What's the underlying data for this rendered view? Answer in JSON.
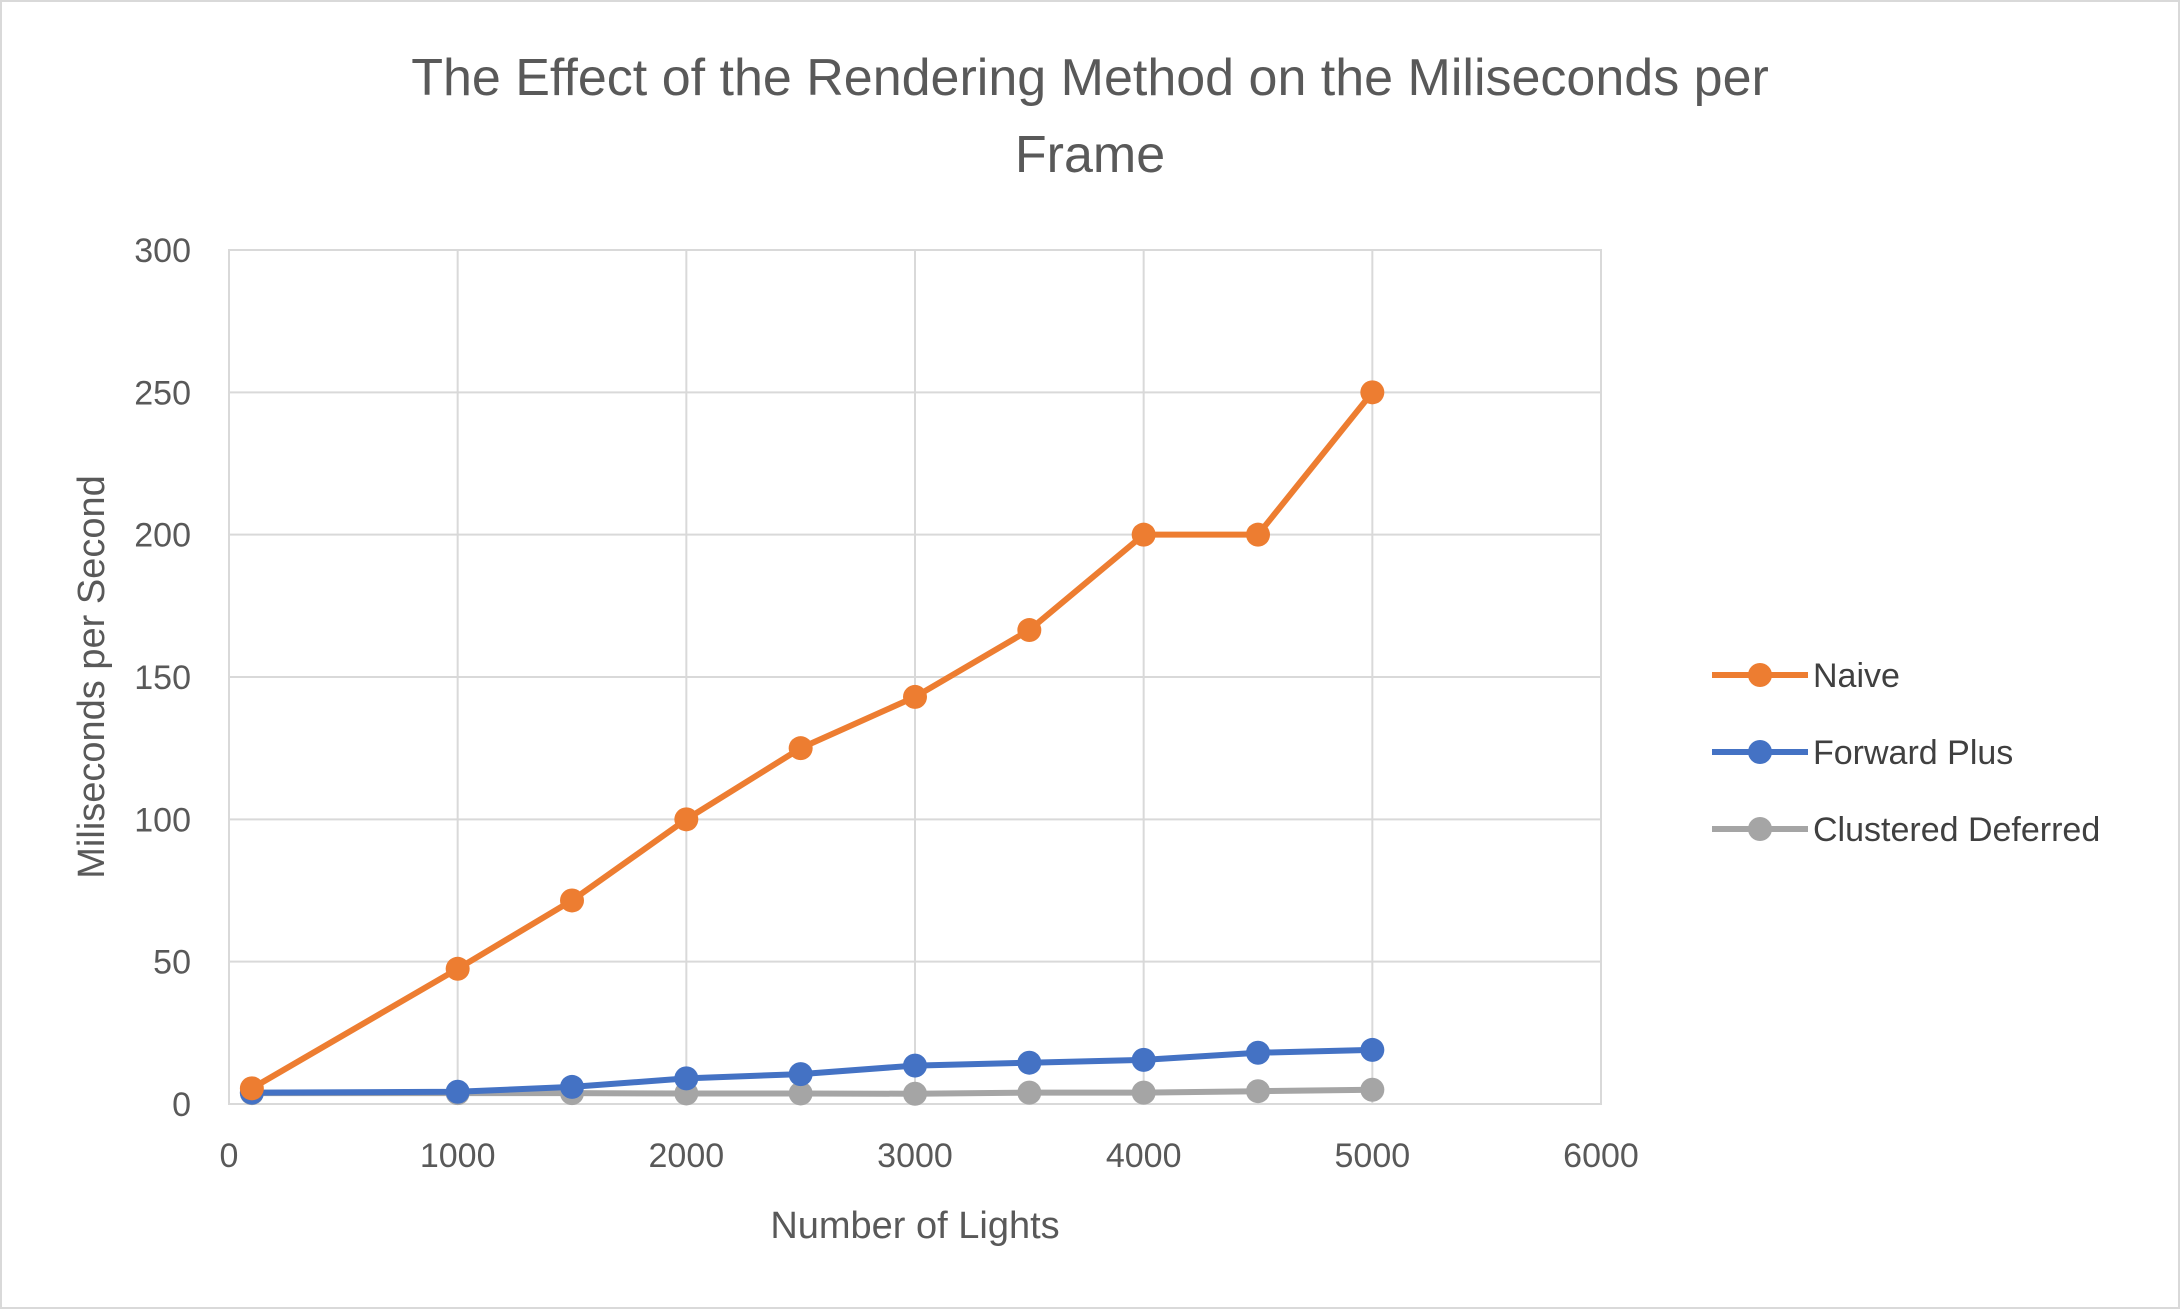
{
  "chart_data": {
    "type": "line",
    "title_lines": [
      "The Effect of the Rendering Method on the Miliseconds per",
      "Frame"
    ],
    "xlabel": "Number of Lights",
    "ylabel": "Miliseconds per Second",
    "xlim": [
      0,
      6000
    ],
    "ylim": [
      0,
      300
    ],
    "xticks": [
      0,
      1000,
      2000,
      3000,
      4000,
      5000,
      6000
    ],
    "yticks": [
      0,
      50,
      100,
      150,
      200,
      250,
      300
    ],
    "grid": true,
    "legend_position": "right",
    "x": [
      100,
      1000,
      1500,
      2000,
      2500,
      3000,
      3500,
      4000,
      4500,
      5000
    ],
    "series": [
      {
        "name": "Naive",
        "color": "#ed7d31",
        "values": [
          5.5,
          47.5,
          71.5,
          100,
          125,
          143,
          166.5,
          200,
          200,
          250
        ]
      },
      {
        "name": "Forward Plus",
        "color": "#4472c4",
        "values": [
          4,
          4.3,
          6,
          9,
          10.5,
          13.5,
          14.5,
          15.5,
          18,
          19
        ]
      },
      {
        "name": "Clustered Deferred",
        "color": "#a5a5a5",
        "values": [
          3.8,
          3.8,
          3.8,
          3.7,
          3.7,
          3.6,
          4,
          4,
          4.5,
          5
        ]
      }
    ]
  }
}
